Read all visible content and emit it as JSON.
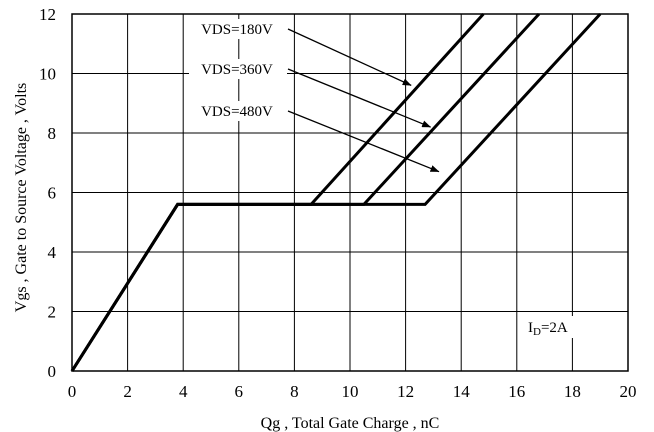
{
  "chart_data": {
    "type": "line",
    "title": "",
    "xlabel": "Qg , Total Gate Charge , nC",
    "ylabel": "Vgs , Gate to Source Voltage , Volts",
    "xlim": [
      0,
      20
    ],
    "ylim": [
      0,
      12
    ],
    "xticks": [
      "0",
      "2",
      "4",
      "6",
      "8",
      "10",
      "12",
      "14",
      "16",
      "18",
      "20"
    ],
    "yticks": [
      "0",
      "2",
      "4",
      "6",
      "8",
      "10",
      "12"
    ],
    "grid": true,
    "series": [
      {
        "name": "VDS=180V",
        "x": [
          0,
          3.8,
          8.6,
          14.8
        ],
        "y": [
          0,
          5.6,
          5.6,
          12
        ]
      },
      {
        "name": "VDS=360V",
        "x": [
          0,
          3.8,
          10.5,
          16.8
        ],
        "y": [
          0,
          5.6,
          5.6,
          12
        ]
      },
      {
        "name": "VDS=480V",
        "x": [
          0,
          3.8,
          12.7,
          19.0
        ],
        "y": [
          0,
          5.6,
          5.6,
          12
        ]
      }
    ],
    "annotations": [
      {
        "label": "VDS=180V",
        "target": [
          12.2,
          9.6
        ]
      },
      {
        "label": "VDS=360V",
        "target": [
          12.9,
          8.2
        ]
      },
      {
        "label": "VDS=480V",
        "target": [
          13.2,
          6.7
        ]
      }
    ],
    "condition": {
      "main": "I",
      "sub": "D",
      "value": "=2A"
    }
  }
}
